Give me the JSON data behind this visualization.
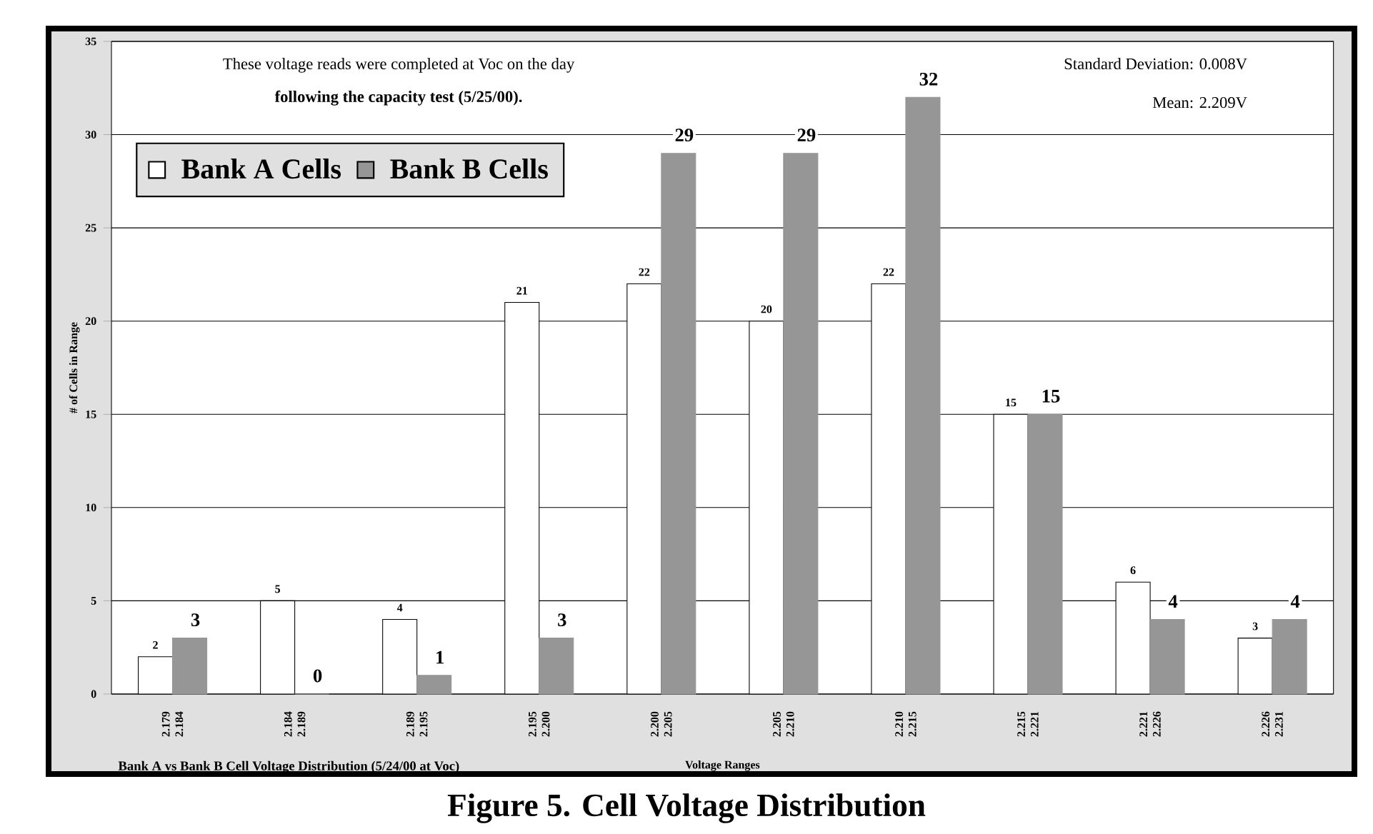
{
  "chart_data": {
    "type": "bar",
    "title": "Figure 5.  Cell Voltage Distribution",
    "xlabel": "Voltage Ranges",
    "ylabel": "# of Cells in Range",
    "annotations": [
      "These voltage reads were completed at Voc on the day",
      "following the capacity test  (5/25/00).",
      "Standard Deviation:  0.008V",
      "Mean:  2.209V",
      "Bank A vs Bank B Cell Voltage Distribution  (5/24/00 at Voc)"
    ],
    "categories": [
      "2.179 2.184",
      "2.184 2.189",
      "2.189 2.195",
      "2.195 2.200",
      "2.200 2.205",
      "2.205 2.210",
      "2.210 2.215",
      "2.215 2.221",
      "2.221 2.226",
      "2.226 2.231"
    ],
    "series": [
      {
        "name": "Bank A Cells",
        "color": "#ffffff",
        "values": [
          2,
          5,
          4,
          21,
          22,
          20,
          22,
          15,
          6,
          3
        ]
      },
      {
        "name": "Bank B Cells",
        "color": "#969696",
        "values": [
          3,
          0,
          1,
          3,
          29,
          29,
          32,
          15,
          4,
          4
        ]
      }
    ],
    "ylim": [
      0,
      35
    ],
    "yticks": [
      0,
      5,
      10,
      15,
      20,
      25,
      30,
      35
    ],
    "grid": "y",
    "legend": "top left",
    "data_labels": true
  }
}
